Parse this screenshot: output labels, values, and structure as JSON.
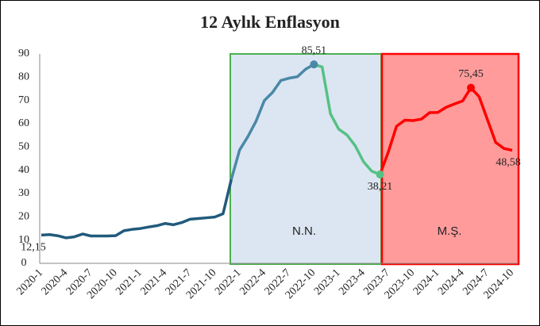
{
  "chart_data": {
    "type": "line",
    "title": "12 Aylık Enflasyon",
    "categories": [
      "2020-1",
      null,
      null,
      "2020-4",
      null,
      null,
      "2020-7",
      null,
      null,
      "2020-10",
      null,
      null,
      "2021-1",
      null,
      null,
      "2021-4",
      null,
      null,
      "2021-7",
      null,
      null,
      "2021-10",
      null,
      null,
      "2022-1",
      null,
      null,
      "2022-4",
      null,
      null,
      "2022-7",
      null,
      null,
      "2022-10",
      null,
      null,
      "2023-1",
      null,
      null,
      "2023-4",
      null,
      null,
      "2023-7",
      null,
      null,
      "2023-10",
      null,
      null,
      "2024-1",
      null,
      null,
      "2024-4",
      null,
      null,
      "2024-7",
      null,
      null,
      "2024-10"
    ],
    "series": [
      {
        "color": "#215a7c",
        "values": [
          12.15,
          12.37,
          11.86,
          10.94,
          11.39,
          12.62,
          11.76,
          11.77,
          11.75,
          11.89,
          14.03,
          14.6,
          14.97,
          15.61,
          16.19,
          17.14,
          16.59,
          17.53,
          18.95,
          19.25,
          19.58,
          19.89,
          21.31,
          36.08,
          null,
          null,
          null,
          null,
          null,
          null,
          null,
          null,
          null,
          null,
          null,
          null,
          null,
          null,
          null,
          null,
          null,
          null,
          null,
          null,
          null,
          null,
          null,
          null,
          null,
          null,
          null,
          null,
          null,
          null,
          null,
          null,
          null,
          null
        ],
        "value_labels": [
          "12,15",
          null,
          null,
          null,
          null,
          null,
          null,
          null,
          null,
          null,
          null,
          null,
          null,
          null,
          null,
          null,
          null,
          null,
          null,
          null,
          null,
          null,
          null,
          null,
          null,
          null,
          null,
          null,
          null,
          null,
          null,
          null,
          null,
          null,
          null,
          null,
          null,
          null,
          null,
          null,
          null,
          null,
          null,
          null,
          null,
          null,
          null,
          null,
          null,
          null,
          null,
          null,
          null,
          null,
          null,
          null,
          null,
          null
        ]
      },
      {
        "color": "#4a88a8",
        "values": [
          null,
          null,
          null,
          null,
          null,
          null,
          null,
          null,
          null,
          null,
          null,
          null,
          null,
          null,
          null,
          null,
          null,
          null,
          null,
          null,
          null,
          null,
          null,
          36.08,
          48.69,
          54.44,
          61.14,
          69.97,
          73.5,
          78.62,
          79.6,
          80.21,
          83.45,
          85.51,
          null,
          null,
          null,
          null,
          null,
          null,
          null,
          null,
          null,
          null,
          null,
          null,
          null,
          null,
          null,
          null,
          null,
          null,
          null,
          null,
          null,
          null,
          null,
          null
        ],
        "value_labels": [
          null,
          null,
          null,
          null,
          null,
          null,
          null,
          null,
          null,
          null,
          null,
          null,
          null,
          null,
          null,
          null,
          null,
          null,
          null,
          null,
          null,
          null,
          null,
          null,
          null,
          null,
          null,
          null,
          null,
          null,
          null,
          null,
          null,
          "85,51",
          null,
          null,
          null,
          null,
          null,
          null,
          null,
          null,
          null,
          null,
          null,
          null,
          null,
          null,
          null,
          null,
          null,
          null,
          null,
          null,
          null,
          null,
          null,
          null
        ]
      },
      {
        "color": "#55c184",
        "values": [
          null,
          null,
          null,
          null,
          null,
          null,
          null,
          null,
          null,
          null,
          null,
          null,
          null,
          null,
          null,
          null,
          null,
          null,
          null,
          null,
          null,
          null,
          null,
          null,
          null,
          null,
          null,
          null,
          null,
          null,
          null,
          null,
          null,
          85.51,
          84.39,
          64.27,
          57.68,
          55.18,
          50.51,
          43.68,
          39.59,
          38.21,
          null,
          null,
          null,
          null,
          null,
          null,
          null,
          null,
          null,
          null,
          null,
          null,
          null,
          null,
          null,
          null
        ],
        "value_labels": [
          null,
          null,
          null,
          null,
          null,
          null,
          null,
          null,
          null,
          null,
          null,
          null,
          null,
          null,
          null,
          null,
          null,
          null,
          null,
          null,
          null,
          null,
          null,
          null,
          null,
          null,
          null,
          null,
          null,
          null,
          null,
          null,
          null,
          null,
          null,
          null,
          null,
          null,
          null,
          null,
          null,
          "38,21",
          null,
          null,
          null,
          null,
          null,
          null,
          null,
          null,
          null,
          null,
          null,
          null,
          null,
          null,
          null,
          null
        ]
      },
      {
        "color": "#ff0000",
        "values": [
          null,
          null,
          null,
          null,
          null,
          null,
          null,
          null,
          null,
          null,
          null,
          null,
          null,
          null,
          null,
          null,
          null,
          null,
          null,
          null,
          null,
          null,
          null,
          null,
          null,
          null,
          null,
          null,
          null,
          null,
          null,
          null,
          null,
          null,
          null,
          null,
          null,
          null,
          null,
          null,
          null,
          38.21,
          47.83,
          58.94,
          61.53,
          61.36,
          61.98,
          64.77,
          64.86,
          67.07,
          68.5,
          69.8,
          75.45,
          71.6,
          61.78,
          51.97,
          49.38,
          48.58
        ],
        "value_labels": [
          null,
          null,
          null,
          null,
          null,
          null,
          null,
          null,
          null,
          null,
          null,
          null,
          null,
          null,
          null,
          null,
          null,
          null,
          null,
          null,
          null,
          null,
          null,
          null,
          null,
          null,
          null,
          null,
          null,
          null,
          null,
          null,
          null,
          null,
          null,
          null,
          null,
          null,
          null,
          null,
          null,
          null,
          null,
          null,
          null,
          null,
          null,
          null,
          null,
          null,
          null,
          null,
          "75,45",
          null,
          null,
          null,
          null,
          "48,58"
        ]
      }
    ],
    "ylim": [
      0,
      90
    ],
    "yticks": [
      0,
      10,
      20,
      30,
      40,
      50,
      60,
      70,
      80,
      90
    ],
    "grid": false,
    "regions": [
      {
        "label": "N.N."
      },
      {
        "label": "M.Ş."
      }
    ]
  }
}
